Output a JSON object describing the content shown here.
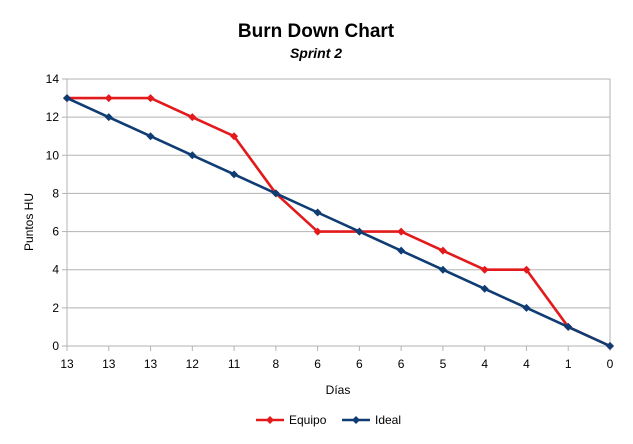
{
  "chart_data": {
    "type": "line",
    "title": "Burn Down Chart",
    "subtitle": "Sprint 2",
    "xlabel": "Días",
    "ylabel": "Puntos HU",
    "ylim": [
      0,
      14
    ],
    "yticks": [
      0,
      2,
      4,
      6,
      8,
      10,
      12,
      14
    ],
    "categories": [
      "13",
      "13",
      "13",
      "12",
      "11",
      "8",
      "6",
      "6",
      "6",
      "5",
      "4",
      "4",
      "1",
      "0"
    ],
    "grid": true,
    "legend_position": "bottom",
    "series": [
      {
        "name": "Equipo",
        "color": "#e31a1c",
        "values": [
          13,
          13,
          13,
          12,
          11,
          8,
          6,
          6,
          6,
          5,
          4,
          4,
          1,
          0
        ]
      },
      {
        "name": "Ideal",
        "color": "#0f3d73",
        "values": [
          13,
          12,
          11,
          10,
          9,
          8,
          7,
          6,
          5,
          4,
          3,
          2,
          1,
          0
        ]
      }
    ]
  }
}
